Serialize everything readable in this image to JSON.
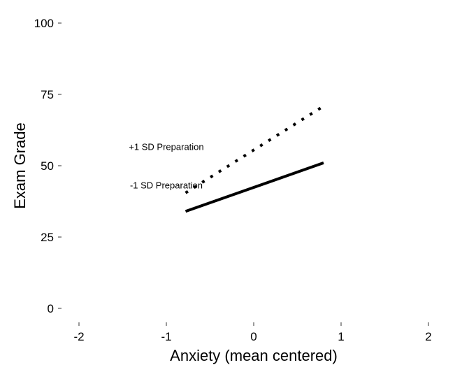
{
  "chart_data": {
    "type": "line",
    "title": "",
    "xlabel": "Anxiety (mean centered)",
    "ylabel": "Exam Grade",
    "xlim": [
      -2,
      2
    ],
    "ylim": [
      0,
      100
    ],
    "xticks": [
      -2,
      -1,
      0,
      1,
      2
    ],
    "xtick_labels": [
      "-2",
      "-1",
      "0",
      "1",
      "2"
    ],
    "yticks": [
      0,
      25,
      50,
      75,
      100
    ],
    "ytick_labels": [
      "0",
      "25",
      "50",
      "75",
      "100"
    ],
    "grid": false,
    "legend": "none",
    "series": [
      {
        "style": "dotted",
        "color": "#000000",
        "x": [
          -0.78,
          0.78
        ],
        "y": [
          40.5,
          70.5
        ]
      },
      {
        "style": "solid",
        "color": "#000000",
        "x": [
          -0.78,
          0.8
        ],
        "y": [
          34,
          51
        ]
      }
    ],
    "annotations": [
      {
        "text": "+1 SD Preparation",
        "x": -1.0,
        "y": 55.5
      },
      {
        "text": "-1 SD Preparation",
        "x": -1.0,
        "y": 42
      }
    ]
  }
}
